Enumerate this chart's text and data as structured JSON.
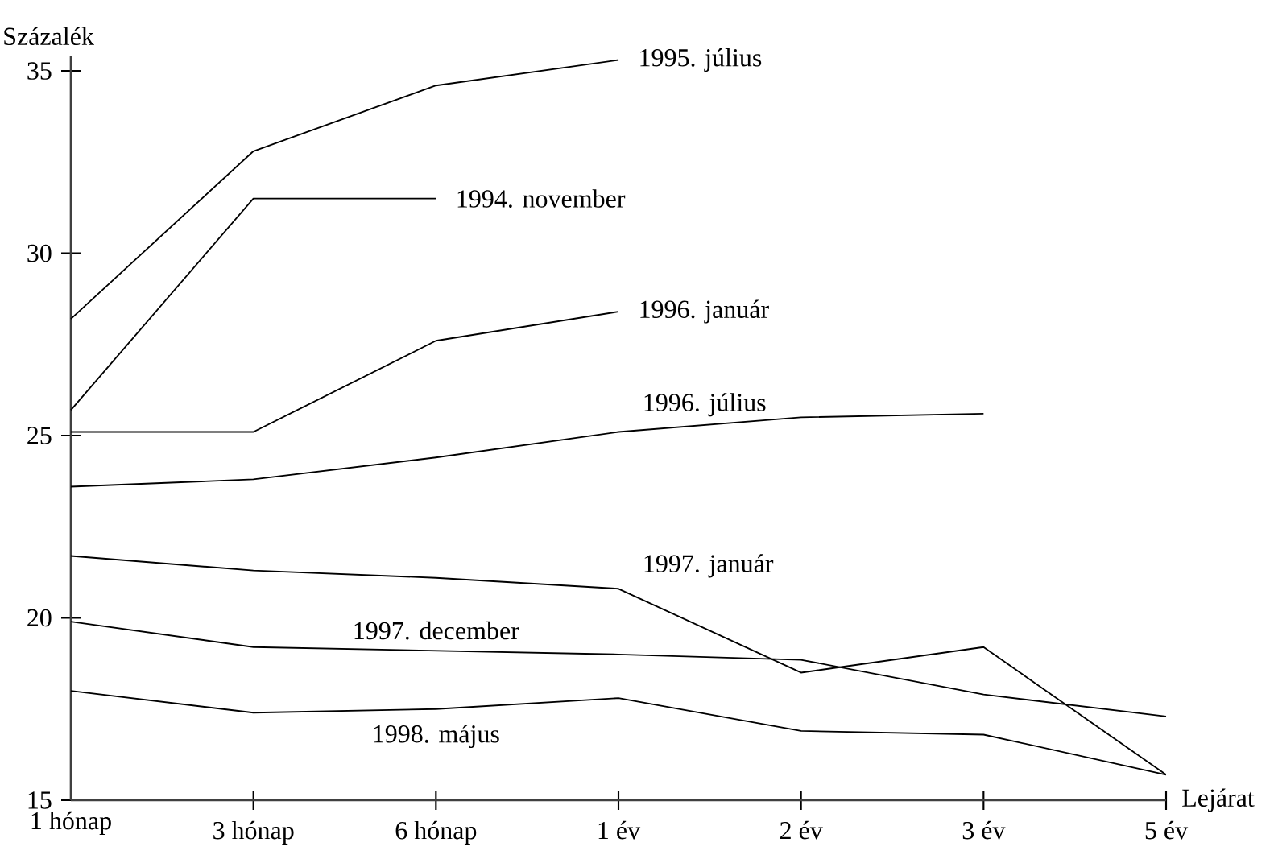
{
  "chart_data": {
    "type": "line",
    "ylabel": "Százalék",
    "xlabel": "Lejárat",
    "categories": [
      "1 hónap",
      "3 hónap",
      "6 hónap",
      "1 év",
      "2 év",
      "3 év",
      "5 év"
    ],
    "ylim": [
      15,
      35.4
    ],
    "yticks": [
      15,
      20,
      25,
      30,
      35
    ],
    "series": [
      {
        "name": "1995. július",
        "color": "#000000",
        "values": [
          28.2,
          32.8,
          34.6,
          35.3,
          null,
          null,
          null
        ]
      },
      {
        "name": "1994. november",
        "color": "#000000",
        "values": [
          25.7,
          31.5,
          31.5,
          null,
          null,
          null,
          null
        ]
      },
      {
        "name": "1996. január",
        "color": "#000000",
        "values": [
          25.1,
          25.1,
          27.6,
          28.4,
          null,
          null,
          null
        ]
      },
      {
        "name": "1996. július",
        "color": "#000000",
        "values": [
          23.6,
          23.8,
          24.4,
          25.1,
          25.5,
          25.6,
          null
        ]
      },
      {
        "name": "1997. január",
        "color": "#000000",
        "values": [
          21.7,
          21.3,
          21.1,
          20.8,
          18.5,
          19.2,
          15.7
        ]
      },
      {
        "name": "1997. december",
        "color": "#000000",
        "values": [
          19.9,
          19.2,
          19.1,
          19.0,
          18.85,
          17.9,
          17.3
        ]
      },
      {
        "name": "1998. május",
        "color": "#000000",
        "values": [
          18.0,
          17.4,
          17.5,
          17.8,
          16.9,
          16.8,
          15.7
        ]
      }
    ]
  }
}
